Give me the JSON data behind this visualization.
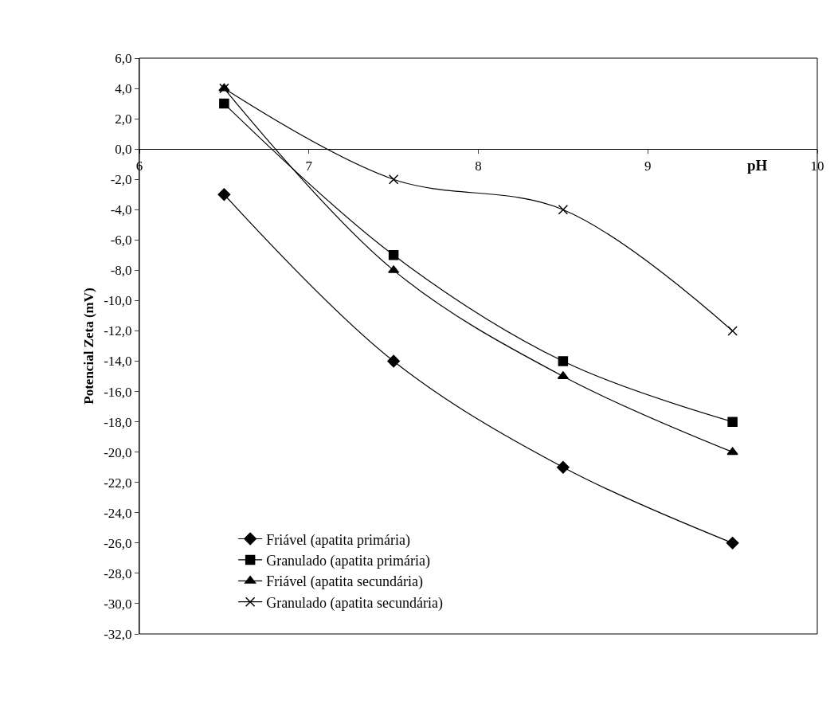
{
  "chart_data": {
    "type": "line",
    "xlabel": "pH",
    "ylabel": "Potencial Zeta (mV)",
    "x": [
      6.5,
      7.5,
      8.5,
      9.5
    ],
    "series": [
      {
        "name": "Friável (apatita primária)",
        "color": "#000000",
        "marker": "diamond",
        "values": [
          -3,
          -14,
          -21,
          -26
        ]
      },
      {
        "name": "Granulado (apatita primária)",
        "color": "#000000",
        "marker": "square",
        "values": [
          3,
          -7,
          -14,
          -18
        ]
      },
      {
        "name": "Friável (apatita secundária)",
        "color": "#000000",
        "marker": "triangle",
        "values": [
          4,
          -8,
          -15,
          -20
        ]
      },
      {
        "name": "Granulado (apatita secundária)",
        "color": "#000000",
        "marker": "cross",
        "values": [
          4,
          -2,
          -4,
          -12
        ]
      }
    ],
    "xlim": [
      6,
      10
    ],
    "xticks": [
      6,
      7,
      8,
      9,
      10
    ],
    "ylim": [
      -32,
      6
    ],
    "yticks": [
      {
        "value": 6,
        "label": "6,0"
      },
      {
        "value": 4,
        "label": "4,0"
      },
      {
        "value": 2,
        "label": "2,0"
      },
      {
        "value": 0,
        "label": "0,0"
      },
      {
        "value": -2,
        "label": "-2,0"
      },
      {
        "value": -4,
        "label": "-4,0"
      },
      {
        "value": -6,
        "label": "-6,0"
      },
      {
        "value": -8,
        "label": "-8,0"
      },
      {
        "value": -10,
        "label": "-10,0"
      },
      {
        "value": -12,
        "label": "-12,0"
      },
      {
        "value": -14,
        "label": "-14,0"
      },
      {
        "value": -16,
        "label": "-16,0"
      },
      {
        "value": -18,
        "label": "-18,0"
      },
      {
        "value": -20,
        "label": "-20,0"
      },
      {
        "value": -22,
        "label": "-22,0"
      },
      {
        "value": -24,
        "label": "-24,0"
      },
      {
        "value": -26,
        "label": "-26,0"
      },
      {
        "value": -28,
        "label": "-28,0"
      },
      {
        "value": -30,
        "label": "-30,0"
      },
      {
        "value": -32,
        "label": "-32,0"
      }
    ],
    "legend": "bottom left",
    "line_style": "solid"
  }
}
